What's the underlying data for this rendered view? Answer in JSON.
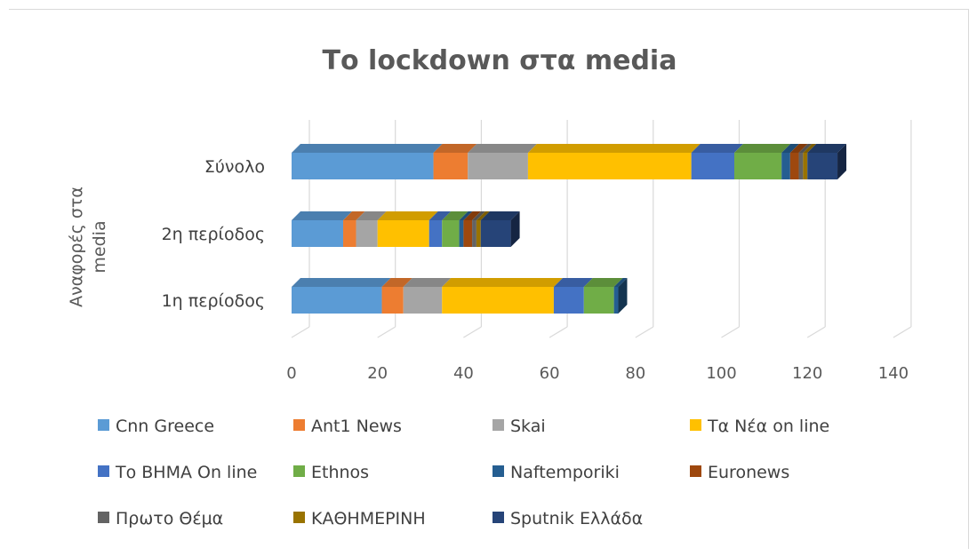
{
  "chart_data": {
    "type": "bar",
    "orientation": "horizontal",
    "stacked": true,
    "three_d": true,
    "title": "Το lockdown στα media",
    "ylabel": "Αναφορές στα media",
    "xlabel": "",
    "categories": [
      "1η περίοδος",
      "2η περίοδος",
      "Σύνολο"
    ],
    "xlim": [
      0,
      140
    ],
    "xticks": [
      "0",
      "20",
      "40",
      "60",
      "80",
      "100",
      "120",
      "140"
    ],
    "grid": true,
    "legend_position": "bottom",
    "series": [
      {
        "name": "Cnn Greece",
        "color": "#5B9BD5",
        "values": [
          21,
          12,
          33
        ]
      },
      {
        "name": "Ant1 News",
        "color": "#ED7D31",
        "values": [
          5,
          3,
          8
        ]
      },
      {
        "name": "Skai",
        "color": "#A5A5A5",
        "values": [
          9,
          5,
          14
        ]
      },
      {
        "name": "Τα Νέα on line",
        "color": "#FFC000",
        "values": [
          26,
          12,
          38
        ]
      },
      {
        "name": "Το  ΒΗΜΑ On line",
        "color": "#4472C4",
        "values": [
          7,
          3,
          10
        ]
      },
      {
        "name": "Ethnos",
        "color": "#70AD47",
        "values": [
          7,
          4,
          11
        ]
      },
      {
        "name": "Naftemporiki",
        "color": "#255E91",
        "values": [
          1,
          1,
          2
        ]
      },
      {
        "name": "Euronews",
        "color": "#9E480E",
        "values": [
          0,
          2,
          2
        ]
      },
      {
        "name": "Πρωτο Θέμα",
        "color": "#636363",
        "values": [
          0,
          1,
          1
        ]
      },
      {
        "name": "ΚΑΘΗΜΕΡΙΝΗ",
        "color": "#997300",
        "values": [
          0,
          1,
          1
        ]
      },
      {
        "name": "Sputnik Ελλάδα",
        "color": "#264478",
        "values": [
          0,
          7,
          7
        ]
      }
    ]
  }
}
